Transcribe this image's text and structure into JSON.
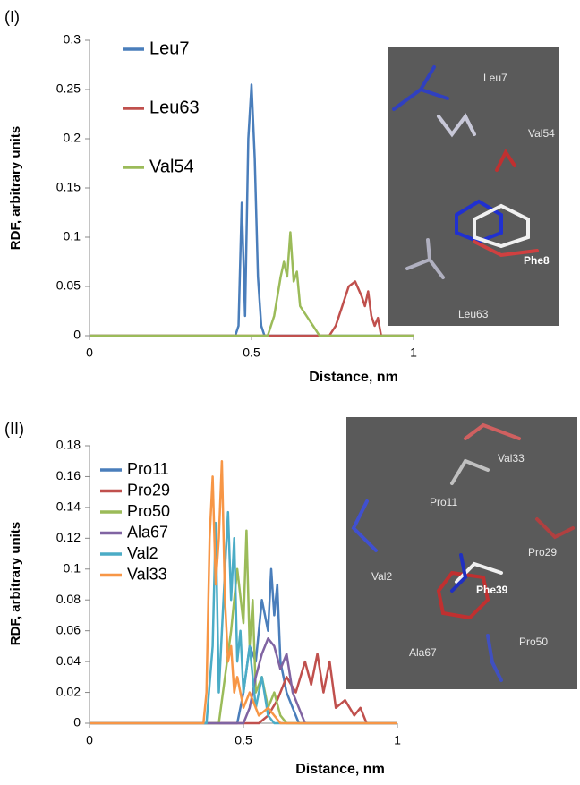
{
  "chart_data": [
    {
      "type": "line",
      "panel": "(I)",
      "xlabel": "Distance, nm",
      "ylabel": "RDF, arbitrary units",
      "xlim": [
        0,
        1
      ],
      "ylim": [
        0,
        0.3
      ],
      "xticks": [
        0,
        0.5,
        1
      ],
      "yticks": [
        0,
        0.05,
        0.1,
        0.15,
        0.2,
        0.25,
        0.3
      ],
      "legend": "upper left",
      "series": [
        {
          "name": "Leu7",
          "color": "#4a7ebb",
          "x": [
            0,
            0.45,
            0.46,
            0.47,
            0.48,
            0.49,
            0.5,
            0.51,
            0.52,
            0.53,
            0.54,
            1
          ],
          "values": [
            0,
            0,
            0.01,
            0.135,
            0.02,
            0.2,
            0.255,
            0.18,
            0.06,
            0.01,
            0,
            0
          ]
        },
        {
          "name": "Leu63",
          "color": "#c0504d",
          "x": [
            0,
            0.74,
            0.76,
            0.78,
            0.8,
            0.82,
            0.84,
            0.85,
            0.86,
            0.87,
            0.88,
            0.89,
            0.9,
            1
          ],
          "values": [
            0,
            0,
            0.01,
            0.03,
            0.05,
            0.055,
            0.04,
            0.03,
            0.045,
            0.02,
            0.01,
            0.018,
            0,
            0
          ]
        },
        {
          "name": "Val54",
          "color": "#9bbb59",
          "x": [
            0,
            0.55,
            0.57,
            0.59,
            0.6,
            0.61,
            0.62,
            0.63,
            0.64,
            0.65,
            0.67,
            0.69,
            0.71,
            1
          ],
          "values": [
            0,
            0,
            0.02,
            0.06,
            0.075,
            0.06,
            0.105,
            0.055,
            0.065,
            0.03,
            0.02,
            0.01,
            0,
            0
          ]
        }
      ],
      "annotations": [
        "Leu7",
        "Val54",
        "Phe8",
        "Leu63"
      ]
    },
    {
      "type": "line",
      "panel": "(II)",
      "xlabel": "Distance, nm",
      "ylabel": "RDF, arbitrary units",
      "xlim": [
        0,
        1
      ],
      "ylim": [
        0,
        0.18
      ],
      "xticks": [
        0,
        0.5,
        1
      ],
      "yticks": [
        0,
        0.02,
        0.04,
        0.06,
        0.08,
        0.1,
        0.12,
        0.14,
        0.16,
        0.18
      ],
      "legend": "upper left",
      "series": [
        {
          "name": "Pro11",
          "color": "#4a7ebb",
          "x": [
            0,
            0.48,
            0.5,
            0.52,
            0.54,
            0.56,
            0.58,
            0.59,
            0.6,
            0.61,
            0.62,
            0.64,
            0.66,
            0.68,
            1
          ],
          "values": [
            0,
            0,
            0.02,
            0.05,
            0.04,
            0.08,
            0.06,
            0.1,
            0.07,
            0.09,
            0.04,
            0.02,
            0.01,
            0,
            0
          ]
        },
        {
          "name": "Pro29",
          "color": "#c0504d",
          "x": [
            0,
            0.55,
            0.58,
            0.61,
            0.64,
            0.67,
            0.7,
            0.72,
            0.74,
            0.76,
            0.78,
            0.8,
            0.83,
            0.86,
            0.88,
            0.9,
            1
          ],
          "values": [
            0,
            0,
            0.005,
            0.015,
            0.03,
            0.02,
            0.04,
            0.025,
            0.045,
            0.02,
            0.04,
            0.01,
            0.015,
            0.005,
            0.01,
            0,
            0
          ]
        },
        {
          "name": "Pro50",
          "color": "#9bbb59",
          "x": [
            0,
            0.42,
            0.44,
            0.46,
            0.48,
            0.5,
            0.51,
            0.52,
            0.53,
            0.54,
            0.56,
            0.58,
            0.6,
            0.62,
            0.64,
            1
          ],
          "values": [
            0,
            0,
            0.03,
            0.06,
            0.1,
            0.065,
            0.125,
            0.05,
            0.08,
            0.02,
            0.03,
            0.01,
            0.02,
            0.005,
            0,
            0
          ]
        },
        {
          "name": "Ala67",
          "color": "#8064a2",
          "x": [
            0,
            0.5,
            0.52,
            0.54,
            0.56,
            0.58,
            0.6,
            0.62,
            0.64,
            0.66,
            0.68,
            0.7,
            1
          ],
          "values": [
            0,
            0,
            0.01,
            0.03,
            0.045,
            0.055,
            0.05,
            0.035,
            0.045,
            0.02,
            0.01,
            0,
            0
          ]
        },
        {
          "name": "Val2",
          "color": "#4bacc6",
          "x": [
            0,
            0.38,
            0.4,
            0.41,
            0.42,
            0.44,
            0.45,
            0.46,
            0.47,
            0.48,
            0.49,
            0.5,
            0.52,
            0.54,
            0.56,
            0.58,
            0.6,
            1
          ],
          "values": [
            0,
            0,
            0.05,
            0.13,
            0.02,
            0.1,
            0.137,
            0.08,
            0.12,
            0.04,
            0.06,
            0.02,
            0.05,
            0.01,
            0.03,
            0.005,
            0,
            0
          ]
        },
        {
          "name": "Val33",
          "color": "#f79646",
          "x": [
            0,
            0.37,
            0.38,
            0.39,
            0.4,
            0.41,
            0.42,
            0.43,
            0.44,
            0.45,
            0.46,
            0.47,
            0.48,
            0.5,
            0.52,
            0.55,
            0.58,
            0.62,
            1
          ],
          "values": [
            0,
            0,
            0.02,
            0.12,
            0.16,
            0.09,
            0.12,
            0.17,
            0.08,
            0.04,
            0.05,
            0.02,
            0.03,
            0.01,
            0.02,
            0.005,
            0.01,
            0,
            0
          ]
        }
      ],
      "annotations": [
        "Val33",
        "Pro11",
        "Pro29",
        "Val2",
        "Phe39",
        "Ala67",
        "Pro50"
      ]
    }
  ]
}
